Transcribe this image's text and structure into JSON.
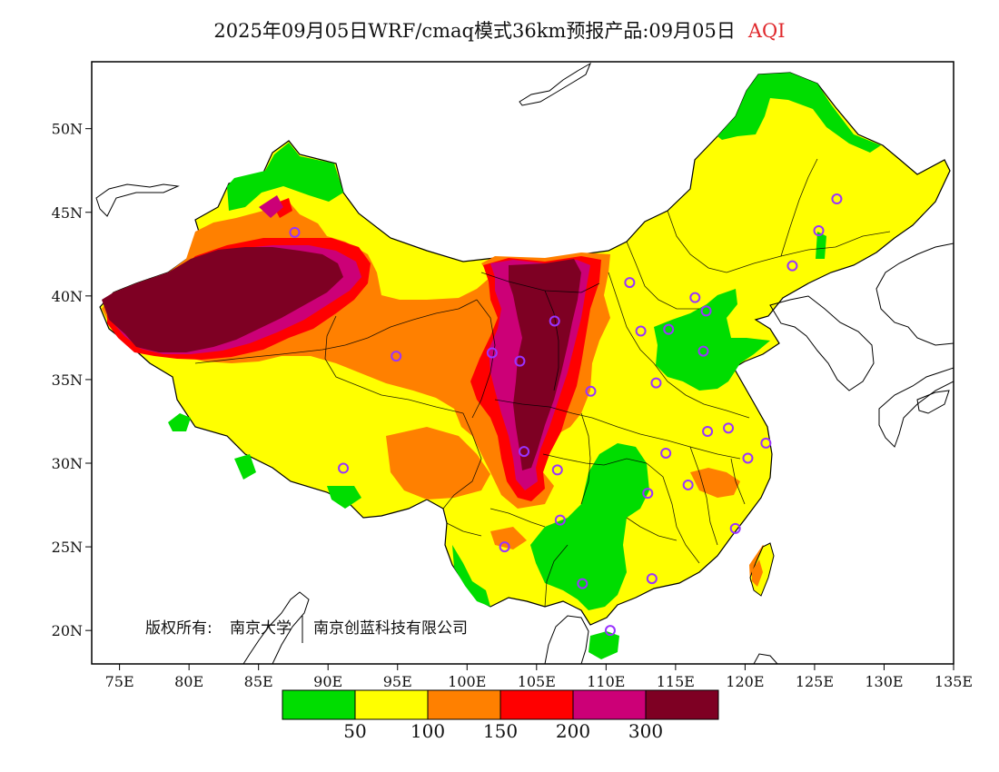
{
  "title": {
    "main": "2025年09月05日WRF/cmaq模式36km预报产品:09月05日",
    "variable": "AQI"
  },
  "axes": {
    "lon_ticks": [
      "75E",
      "80E",
      "85E",
      "90E",
      "95E",
      "100E",
      "105E",
      "110E",
      "115E",
      "120E",
      "125E",
      "130E",
      "135E"
    ],
    "lat_ticks": [
      "50N",
      "45N",
      "40N",
      "35N",
      "30N",
      "25N",
      "20N"
    ],
    "lon_range": [
      73,
      135
    ],
    "lat_range": [
      18,
      54
    ]
  },
  "copyright": {
    "prefix": "版权所有:",
    "org1": "南京大学",
    "org2": "南京创蓝科技有限公司"
  },
  "legend": {
    "colors": [
      "#00dd00",
      "#ffff00",
      "#ff8000",
      "#ff0000",
      "#cc0077",
      "#7e0023"
    ],
    "labels": [
      "50",
      "100",
      "150",
      "200",
      "300"
    ]
  },
  "map_colors": {
    "good": "#00dd00",
    "moderate": "#ffff00",
    "usg": "#ff8000",
    "unhealthy": "#ff0000",
    "very_unhealthy": "#cc0077",
    "hazardous": "#7e0023",
    "station_marker": "#9933ff"
  },
  "stations": [
    {
      "lon": 87.6,
      "lat": 43.8
    },
    {
      "lon": 91.1,
      "lat": 29.7
    },
    {
      "lon": 101.8,
      "lat": 36.6
    },
    {
      "lon": 103.8,
      "lat": 36.1
    },
    {
      "lon": 106.3,
      "lat": 38.5
    },
    {
      "lon": 104.1,
      "lat": 30.7
    },
    {
      "lon": 106.5,
      "lat": 29.6
    },
    {
      "lon": 108.9,
      "lat": 34.3
    },
    {
      "lon": 106.7,
      "lat": 26.6
    },
    {
      "lon": 102.7,
      "lat": 25.0
    },
    {
      "lon": 108.3,
      "lat": 22.8
    },
    {
      "lon": 110.3,
      "lat": 20.0
    },
    {
      "lon": 113.3,
      "lat": 23.1
    },
    {
      "lon": 113.0,
      "lat": 28.2
    },
    {
      "lon": 114.3,
      "lat": 30.6
    },
    {
      "lon": 115.9,
      "lat": 28.7
    },
    {
      "lon": 117.3,
      "lat": 31.9
    },
    {
      "lon": 118.8,
      "lat": 32.1
    },
    {
      "lon": 120.2,
      "lat": 30.3
    },
    {
      "lon": 121.5,
      "lat": 31.2
    },
    {
      "lon": 119.3,
      "lat": 26.1
    },
    {
      "lon": 113.6,
      "lat": 34.8
    },
    {
      "lon": 117.0,
      "lat": 36.7
    },
    {
      "lon": 114.5,
      "lat": 38.0
    },
    {
      "lon": 112.5,
      "lat": 37.9
    },
    {
      "lon": 116.4,
      "lat": 39.9
    },
    {
      "lon": 117.2,
      "lat": 39.1
    },
    {
      "lon": 111.7,
      "lat": 40.8
    },
    {
      "lon": 123.4,
      "lat": 41.8
    },
    {
      "lon": 125.3,
      "lat": 43.9
    },
    {
      "lon": 126.6,
      "lat": 45.8
    },
    {
      "lon": 94.9,
      "lat": 36.4
    }
  ]
}
